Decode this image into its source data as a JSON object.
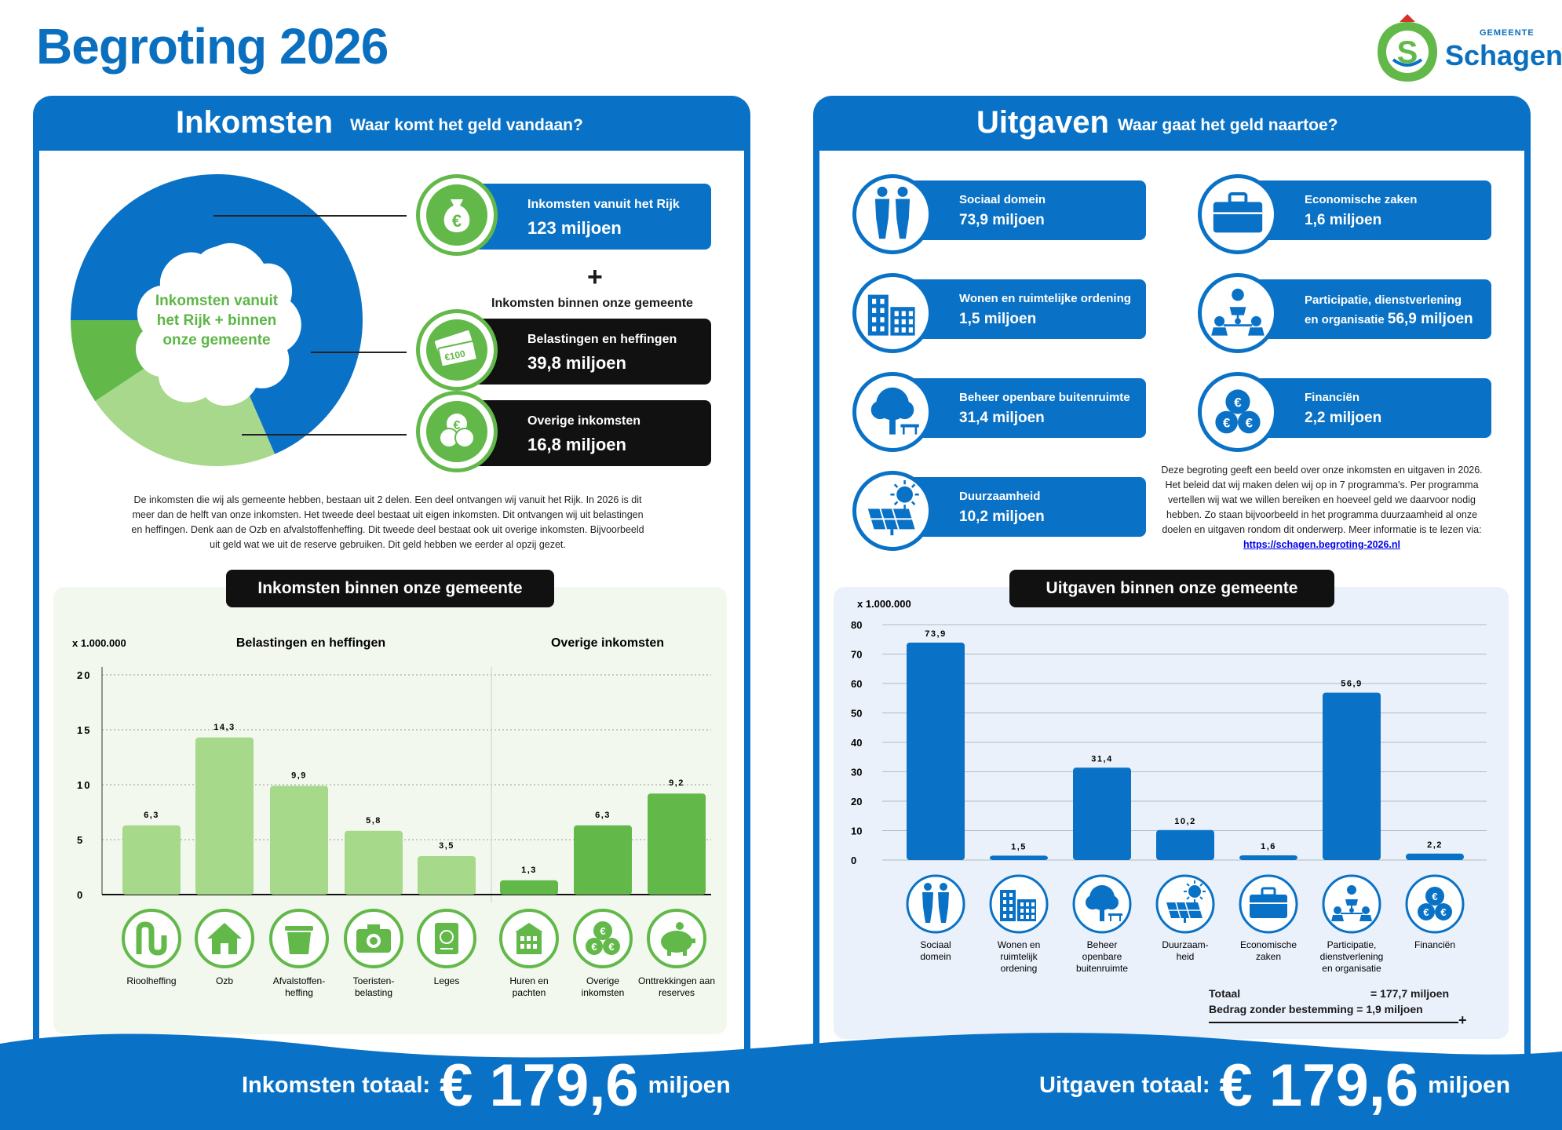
{
  "title": "Begroting 2026",
  "logo": {
    "name": "Schagen",
    "sub": "GEMEENTE"
  },
  "income": {
    "header": "Inkomsten",
    "subheader": "Waar komt het geld vandaan?",
    "pie_center": "Inkomsten vanuit het Rijk + binnen onze gemeente",
    "rijk": {
      "label": "Inkomsten vanuit het Rijk",
      "value": "123 miljoen"
    },
    "plus": "+",
    "binnen_label": "Inkomsten binnen onze gemeente",
    "belasting": {
      "label": "Belastingen en heffingen",
      "value": "39,8 miljoen"
    },
    "overig": {
      "label": "Overige inkomsten",
      "value": "16,8 miljoen"
    },
    "intro": "De inkomsten die wij als gemeente hebben, bestaan uit 2 delen. Een deel ontvangen wij vanuit het Rijk. In 2026 is dit meer dan de helft van onze inkomsten. Het tweede deel bestaat uit eigen inkomsten. Dit ontvangen wij uit belastingen en heffingen. Denk aan de Ozb en afvalstoffenheffing. Dit tweede deel bestaat ook uit overige inkomsten. Bijvoorbeeld uit geld wat we uit de reserve gebruiken. Dit geld hebben we eerder al opzij gezet.",
    "chart_title": "Inkomsten binnen onze gemeente",
    "total_label": "Inkomsten totaal:",
    "total_value": "€ 179,6",
    "total_unit": "miljoen"
  },
  "expenses": {
    "header": "Uitgaven",
    "subheader": "Waar gaat het geld naartoe?",
    "cards": [
      {
        "label": "Sociaal domein",
        "value": "73,9 miljoen",
        "icon": "people-icon"
      },
      {
        "label": "Economische zaken",
        "value": "1,6 miljoen",
        "icon": "briefcase-icon"
      },
      {
        "label": "Wonen en ruimtelijke ordening",
        "value": "1,5 miljoen",
        "icon": "buildings-icon"
      },
      {
        "label": "Participatie, dienstverlening",
        "label2": "en organisatie",
        "value": "56,9 miljoen",
        "icon": "network-icon"
      },
      {
        "label": "Beheer openbare buitenruimte",
        "value": "31,4 miljoen",
        "icon": "tree-icon"
      },
      {
        "label": "Financiën",
        "value": "2,2 miljoen",
        "icon": "coins-icon"
      },
      {
        "label": "Duurzaamheid",
        "value": "10,2 miljoen",
        "icon": "solar-icon"
      }
    ],
    "info": "Deze begroting geeft een beeld over onze inkomsten en uitgaven in 2026. Het beleid dat wij maken delen wij op in 7 programma's. Per programma vertellen wij wat we willen bereiken en hoeveel geld we daarvoor nodig hebben. Zo staan bijvoorbeeld in het programma duurzaamheid al onze doelen en uitgaven rondom dit onderwerp. Meer informatie is te lezen via:",
    "link": "https://schagen.begroting-2026.nl",
    "chart_title": "Uitgaven binnen onze gemeente",
    "totaal_label": "Totaal",
    "totaal_value": "= 177,7 miljoen",
    "zonder_label": "Bedrag zonder bestemming = 1,9 miljoen",
    "plus": "+",
    "total_label": "Uitgaven totaal:",
    "total_value": "€ 179,6",
    "total_unit": "miljoen"
  },
  "colors": {
    "blue": "#0a72c6",
    "green_dark": "#62b94a",
    "green_light": "#a6d98a",
    "green_pale": "#f3f8ee",
    "blue_pale": "#eaf1fb",
    "pie_light": "#a8d88c"
  },
  "chart_data": [
    {
      "type": "pie",
      "slices": [
        {
          "name": "Inkomsten vanuit het Rijk",
          "value": 123
        },
        {
          "name": "Belastingen en heffingen",
          "value": 39.8
        },
        {
          "name": "Overige inkomsten",
          "value": 16.8
        }
      ]
    },
    {
      "type": "bar",
      "title": "Inkomsten binnen onze gemeente",
      "unit_label": "x 1.000.000",
      "ylim": [
        0,
        20
      ],
      "yticks": [
        0,
        5,
        10,
        15,
        20
      ],
      "groups": [
        {
          "name": "Belastingen en heffingen",
          "color": "#a6d98a",
          "categories": [
            "Rioolheffing",
            "Ozb",
            "Afvalstoffen-heffing",
            "Toeristen-belasting",
            "Leges"
          ],
          "values": [
            6.3,
            14.3,
            9.9,
            5.8,
            3.5
          ],
          "labels": [
            "6,3",
            "14,3",
            "9,9",
            "5,8",
            "3,5"
          ],
          "icons": [
            "sewer-icon",
            "house-icon",
            "bin-icon",
            "camera-icon",
            "passport-icon"
          ]
        },
        {
          "name": "Overige inkomsten",
          "color": "#62b94a",
          "categories": [
            "Huren en pachten",
            "Overige inkomsten",
            "Onttrekkingen aan reserves"
          ],
          "values": [
            1.3,
            6.3,
            9.2
          ],
          "labels": [
            "1,3",
            "6,3",
            "9,2"
          ],
          "icons": [
            "building-icon",
            "coins-icon",
            "piggybank-icon"
          ]
        }
      ],
      "grid": true
    },
    {
      "type": "bar",
      "title": "Uitgaven binnen onze gemeente",
      "unit_label": "x 1.000.000",
      "ylim": [
        0,
        80
      ],
      "yticks": [
        0,
        10,
        20,
        30,
        40,
        50,
        60,
        70,
        80
      ],
      "categories": [
        "Sociaal domein",
        "Wonen en ruimtelijk ordening",
        "Beheer openbare buitenruimte",
        "Duurzaam-heid",
        "Economische zaken",
        "Participatie, dienstverlening en organisatie",
        "Financiën"
      ],
      "values": [
        73.9,
        1.5,
        31.4,
        10.2,
        1.6,
        56.9,
        2.2
      ],
      "labels": [
        "73,9",
        "1,5",
        "31,4",
        "10,2",
        "1,6",
        "56,9",
        "2,2"
      ],
      "icons": [
        "people-icon",
        "buildings-icon",
        "tree-icon",
        "solar-icon",
        "briefcase-icon",
        "network-icon",
        "coins-icon"
      ],
      "color": "#0a72c6",
      "grid": true
    }
  ]
}
